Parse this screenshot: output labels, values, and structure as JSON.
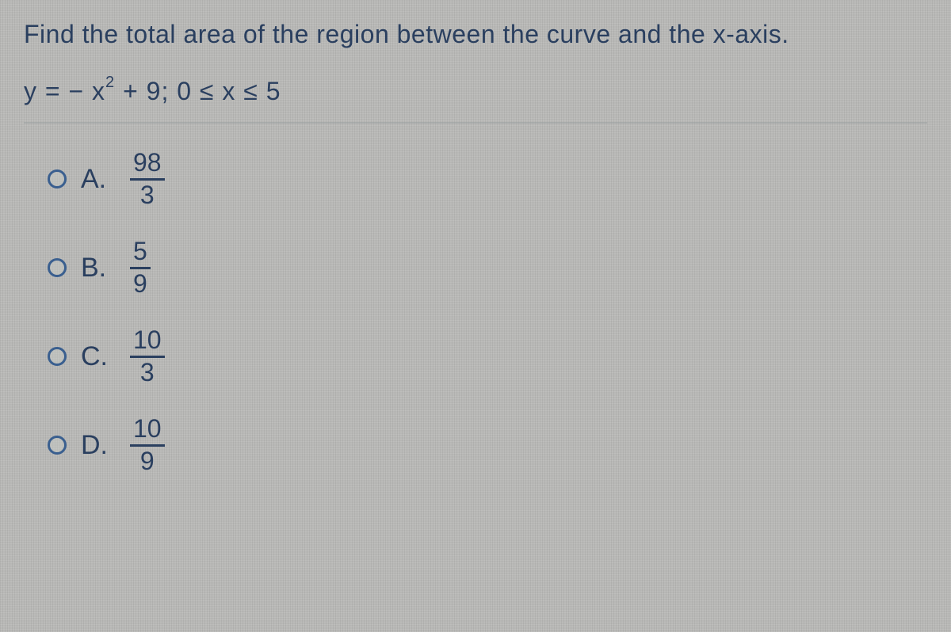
{
  "question": {
    "prompt": "Find the total area of the region between the curve and the x-axis.",
    "equation_prefix": "y = − x",
    "equation_exponent": "2",
    "equation_suffix": " + 9; 0 ≤ x ≤ 5"
  },
  "options": [
    {
      "label": "A.",
      "numerator": "98",
      "denominator": "3"
    },
    {
      "label": "B.",
      "numerator": "5",
      "denominator": "9"
    },
    {
      "label": "C.",
      "numerator": "10",
      "denominator": "3"
    },
    {
      "label": "D.",
      "numerator": "10",
      "denominator": "9"
    }
  ],
  "style": {
    "text_color": "#2a3f5f",
    "background_color": "#b8b8b6",
    "radio_border_color": "#3a5f8f",
    "divider_color": "#9aa0a0",
    "question_fontsize": 32,
    "option_fontsize": 34,
    "fraction_fontsize": 32
  }
}
